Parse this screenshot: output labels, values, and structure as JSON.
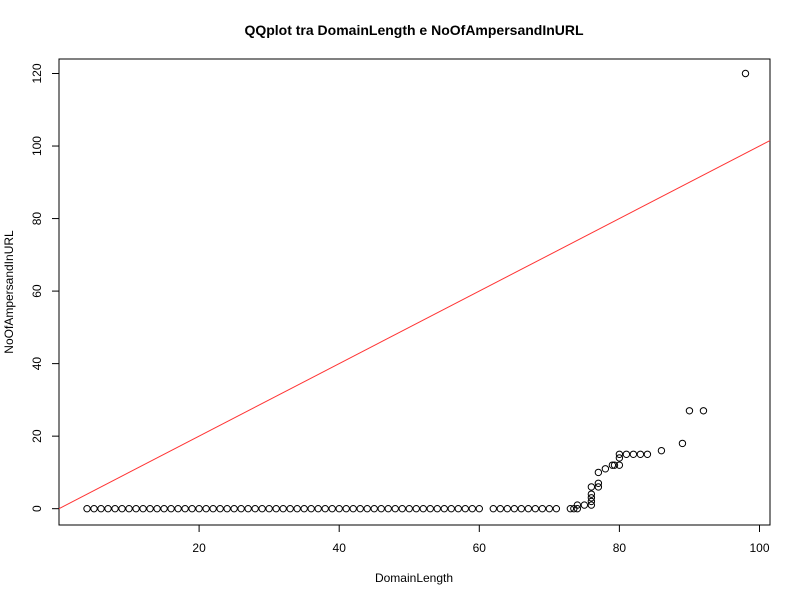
{
  "chart_data": {
    "type": "scatter",
    "title": "QQplot tra DomainLength e NoOfAmpersandInURL",
    "xlabel": "DomainLength",
    "ylabel": "NoOfAmpersandInURL",
    "xlim": [
      0,
      101.5
    ],
    "ylim": [
      -4.5,
      124
    ],
    "x_ticks": [
      20,
      40,
      60,
      80,
      100
    ],
    "y_ticks": [
      0,
      20,
      40,
      60,
      80,
      100,
      120
    ],
    "grid": false,
    "legend": "none",
    "reference_line": {
      "intercept": 0,
      "slope": 1,
      "color": "#ff3333"
    },
    "point_style": "open-circle",
    "point_color": "#000000",
    "points": [
      [
        4,
        0
      ],
      [
        5,
        0
      ],
      [
        6,
        0
      ],
      [
        7,
        0
      ],
      [
        8,
        0
      ],
      [
        9,
        0
      ],
      [
        10,
        0
      ],
      [
        11,
        0
      ],
      [
        12,
        0
      ],
      [
        13,
        0
      ],
      [
        14,
        0
      ],
      [
        15,
        0
      ],
      [
        16,
        0
      ],
      [
        17,
        0
      ],
      [
        18,
        0
      ],
      [
        19,
        0
      ],
      [
        20,
        0
      ],
      [
        21,
        0
      ],
      [
        22,
        0
      ],
      [
        23,
        0
      ],
      [
        24,
        0
      ],
      [
        25,
        0
      ],
      [
        26,
        0
      ],
      [
        27,
        0
      ],
      [
        28,
        0
      ],
      [
        29,
        0
      ],
      [
        30,
        0
      ],
      [
        31,
        0
      ],
      [
        32,
        0
      ],
      [
        33,
        0
      ],
      [
        34,
        0
      ],
      [
        35,
        0
      ],
      [
        36,
        0
      ],
      [
        37,
        0
      ],
      [
        38,
        0
      ],
      [
        39,
        0
      ],
      [
        40,
        0
      ],
      [
        41,
        0
      ],
      [
        42,
        0
      ],
      [
        43,
        0
      ],
      [
        44,
        0
      ],
      [
        45,
        0
      ],
      [
        46,
        0
      ],
      [
        47,
        0
      ],
      [
        48,
        0
      ],
      [
        49,
        0
      ],
      [
        50,
        0
      ],
      [
        51,
        0
      ],
      [
        52,
        0
      ],
      [
        53,
        0
      ],
      [
        54,
        0
      ],
      [
        55,
        0
      ],
      [
        56,
        0
      ],
      [
        57,
        0
      ],
      [
        58,
        0
      ],
      [
        59,
        0
      ],
      [
        60,
        0
      ],
      [
        62,
        0
      ],
      [
        63,
        0
      ],
      [
        64,
        0
      ],
      [
        65,
        0
      ],
      [
        66,
        0
      ],
      [
        67,
        0
      ],
      [
        68,
        0
      ],
      [
        69,
        0
      ],
      [
        70,
        0
      ],
      [
        71,
        0
      ],
      [
        73,
        0
      ],
      [
        73.5,
        0
      ],
      [
        74,
        0
      ],
      [
        74,
        1
      ],
      [
        75,
        1
      ],
      [
        76,
        1
      ],
      [
        76,
        2
      ],
      [
        76,
        3
      ],
      [
        76,
        4
      ],
      [
        76,
        6
      ],
      [
        77,
        6
      ],
      [
        77,
        7
      ],
      [
        77,
        10
      ],
      [
        78,
        11
      ],
      [
        79,
        12
      ],
      [
        79.3,
        12
      ],
      [
        80,
        12
      ],
      [
        80,
        14
      ],
      [
        80,
        15
      ],
      [
        81,
        15
      ],
      [
        82,
        15
      ],
      [
        83,
        15
      ],
      [
        84,
        15
      ],
      [
        86,
        16
      ],
      [
        89,
        18
      ],
      [
        90,
        27
      ],
      [
        92,
        27
      ],
      [
        98,
        120
      ]
    ]
  }
}
